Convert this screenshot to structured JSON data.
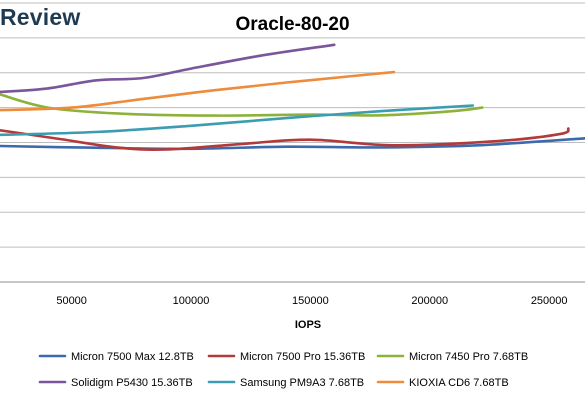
{
  "page": {
    "brand": "Review",
    "title": "Oracle-80-20"
  },
  "chart_data": {
    "type": "line",
    "title": "Oracle-80-20",
    "xlabel": "IOPS",
    "ylabel": "",
    "x_ticks": [
      50000,
      100000,
      150000,
      200000,
      250000
    ],
    "x_tick_labels": [
      "50000",
      "100000",
      "150000",
      "200000",
      "250000"
    ],
    "xlim": [
      20000,
      265000
    ],
    "ylim": [
      0,
      8
    ],
    "grid": "horizontal",
    "legend_placement": "bottom",
    "series": [
      {
        "name": "Micron 7500 Max 12.8TB",
        "color": "#3d6aad",
        "x": [
          20000,
          60000,
          100000,
          140000,
          180000,
          220000,
          265000
        ],
        "y": [
          3.9,
          3.85,
          3.82,
          3.88,
          3.86,
          3.92,
          4.12
        ]
      },
      {
        "name": "Micron 7500 Pro 15.36TB",
        "color": "#b23a3a",
        "x": [
          20000,
          45000,
          70000,
          90000,
          120000,
          150000,
          185000,
          230000,
          255000,
          258000
        ],
        "y": [
          4.35,
          4.1,
          3.85,
          3.8,
          3.95,
          4.08,
          3.92,
          4.05,
          4.25,
          4.4
        ]
      },
      {
        "name": "Micron 7450 Pro 7.68TB",
        "color": "#8cb23c",
        "x": [
          20000,
          40000,
          70000,
          110000,
          150000,
          180000,
          210000,
          222000
        ],
        "y": [
          5.38,
          5.0,
          4.83,
          4.77,
          4.8,
          4.78,
          4.9,
          5.0
        ]
      },
      {
        "name": "Solidigm P5430 15.36TB",
        "color": "#7a569a",
        "x": [
          20000,
          40000,
          60000,
          80000,
          100000,
          130000,
          160000
        ],
        "y": [
          5.45,
          5.55,
          5.78,
          5.85,
          6.12,
          6.5,
          6.8
        ]
      },
      {
        "name": "Samsung PM9A3 7.68TB",
        "color": "#3c9cb2",
        "x": [
          20000,
          60000,
          100000,
          140000,
          180000,
          218000
        ],
        "y": [
          4.22,
          4.3,
          4.48,
          4.7,
          4.9,
          5.06
        ]
      },
      {
        "name": "KIOXIA CD6 7.68TB",
        "color": "#ec8c3c",
        "x": [
          20000,
          50000,
          80000,
          110000,
          140000,
          170000,
          185000
        ],
        "y": [
          4.93,
          5.0,
          5.25,
          5.5,
          5.72,
          5.92,
          6.02
        ]
      }
    ]
  }
}
